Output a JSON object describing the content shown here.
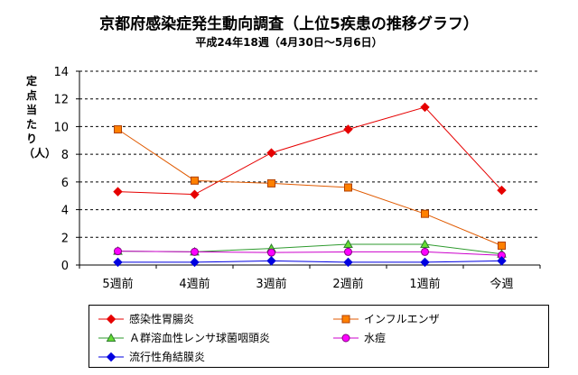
{
  "chart_data": {
    "type": "line",
    "title": "京都府感染症発生動向調査（上位5疾患の推移グラフ）",
    "subtitle": "平成24年18週（4月30日～5月6日）",
    "ylabel": "定点当たり（人）",
    "categories": [
      "5週前",
      "4週前",
      "3週前",
      "2週前",
      "1週前",
      "今週"
    ],
    "ylim": [
      0,
      14
    ],
    "yticks": [
      0,
      2,
      4,
      6,
      8,
      10,
      12,
      14
    ],
    "grid": true,
    "legend_position": "bottom",
    "series": [
      {
        "name": "感染性胃腸炎",
        "values": [
          5.3,
          5.1,
          8.1,
          9.8,
          11.4,
          5.4
        ],
        "color": "#e60000",
        "marker": "diamond"
      },
      {
        "name": "インフルエンザ",
        "values": [
          9.8,
          6.1,
          5.9,
          5.6,
          3.7,
          1.4
        ],
        "color": "#e05a00",
        "marker": "square"
      },
      {
        "name": "Ａ群溶血性レンサ球菌咽頭炎",
        "values": [
          1.0,
          0.95,
          1.2,
          1.5,
          1.5,
          0.8
        ],
        "color": "#2e9a2e",
        "marker": "triangle"
      },
      {
        "name": "水痘",
        "values": [
          1.0,
          0.95,
          0.9,
          0.95,
          0.95,
          0.7
        ],
        "color": "#cc00cc",
        "marker": "circle"
      },
      {
        "name": "流行性角結膜炎",
        "values": [
          0.2,
          0.2,
          0.3,
          0.2,
          0.2,
          0.3
        ],
        "color": "#0000e0",
        "marker": "diamond"
      }
    ]
  }
}
